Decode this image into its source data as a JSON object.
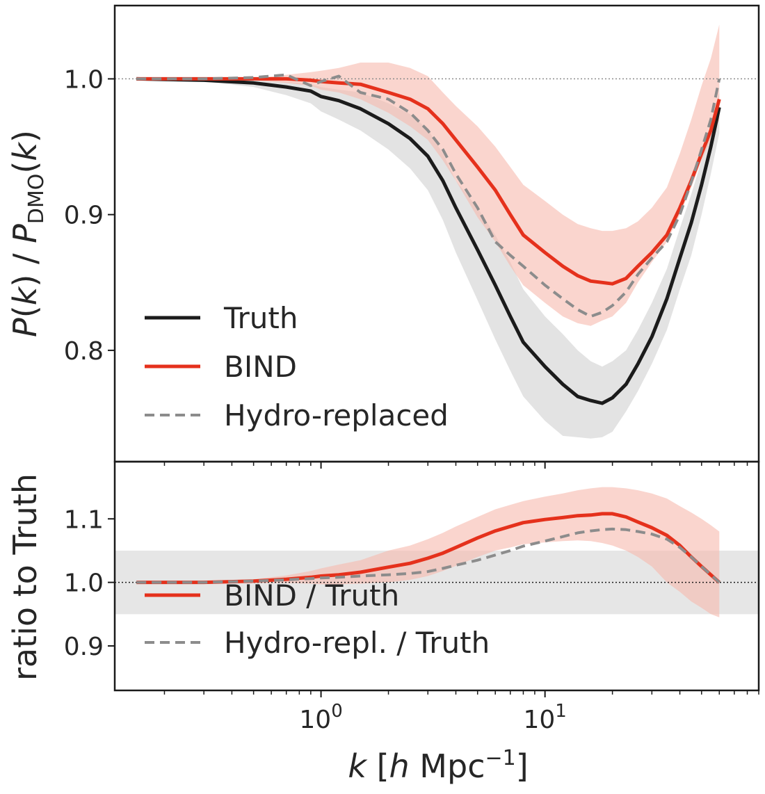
{
  "chart_data": [
    {
      "type": "line",
      "ylabel": "P(k) / P_DMO(k)",
      "xscale": "log",
      "xlim": [
        0.12,
        90
      ],
      "ylim": [
        0.718,
        1.054
      ],
      "yticks": [
        0.8,
        0.9,
        1.0
      ],
      "ytick_labels": [
        "0.8",
        "0.9",
        "1.0"
      ],
      "reference_line": 1.0,
      "legend": {
        "location": "lower-left",
        "entries": [
          "Truth",
          "BIND",
          "Hydro-replaced"
        ]
      },
      "colors": {
        "Truth": "#1b1b1b",
        "BIND": "#e5311c",
        "Hydro-replaced": "#8c8c8c",
        "truth_band": "#d9d9d9",
        "bind_band": "#f7b9ae"
      },
      "x": [
        0.15,
        0.3,
        0.5,
        0.7,
        0.9,
        1.0,
        1.2,
        1.5,
        2.0,
        2.5,
        3.0,
        3.5,
        4.0,
        5.0,
        6.0,
        7.0,
        8.0,
        10,
        12,
        14,
        16,
        18,
        20,
        23,
        26,
        30,
        35,
        40,
        45,
        50,
        55,
        60
      ],
      "series": [
        {
          "name": "Truth",
          "style": "solid",
          "band": "grey",
          "values": [
            1.0,
            0.999,
            0.997,
            0.994,
            0.991,
            0.987,
            0.984,
            0.978,
            0.967,
            0.956,
            0.943,
            0.925,
            0.905,
            0.874,
            0.848,
            0.825,
            0.806,
            0.788,
            0.775,
            0.766,
            0.763,
            0.761,
            0.765,
            0.775,
            0.79,
            0.81,
            0.838,
            0.868,
            0.894,
            0.922,
            0.95,
            0.979
          ],
          "lower": [
            1.0,
            0.998,
            0.994,
            0.988,
            0.982,
            0.976,
            0.97,
            0.962,
            0.948,
            0.934,
            0.918,
            0.896,
            0.872,
            0.837,
            0.808,
            0.785,
            0.766,
            0.748,
            0.737,
            0.736,
            0.735,
            0.736,
            0.74,
            0.755,
            0.77,
            0.79,
            0.815,
            0.845,
            0.87,
            0.9,
            0.93,
            0.96
          ],
          "upper": [
            1.0,
            1.0,
            0.999,
            0.998,
            0.996,
            0.994,
            0.992,
            0.99,
            0.982,
            0.974,
            0.963,
            0.945,
            0.925,
            0.905,
            0.885,
            0.865,
            0.845,
            0.825,
            0.812,
            0.8,
            0.792,
            0.788,
            0.792,
            0.8,
            0.815,
            0.835,
            0.86,
            0.89,
            0.915,
            0.94,
            0.965,
            0.99
          ]
        },
        {
          "name": "BIND",
          "style": "solid",
          "band": "red",
          "values": [
            1.0,
            1.0,
            1.0,
            1.0,
            0.999,
            0.998,
            0.997,
            0.996,
            0.99,
            0.985,
            0.978,
            0.967,
            0.955,
            0.935,
            0.918,
            0.9,
            0.885,
            0.872,
            0.862,
            0.855,
            0.851,
            0.85,
            0.849,
            0.853,
            0.862,
            0.872,
            0.885,
            0.905,
            0.925,
            0.945,
            0.962,
            0.985
          ],
          "lower": [
            1.0,
            1.0,
            0.999,
            0.997,
            0.995,
            0.992,
            0.99,
            0.985,
            0.975,
            0.965,
            0.955,
            0.94,
            0.925,
            0.898,
            0.88,
            0.862,
            0.848,
            0.835,
            0.825,
            0.82,
            0.818,
            0.822,
            0.825,
            0.835,
            0.85,
            0.865,
            0.88,
            0.9,
            0.92,
            0.94,
            0.955,
            0.97
          ],
          "upper": [
            1.0,
            1.0,
            1.0,
            1.003,
            1.005,
            1.006,
            1.008,
            1.012,
            1.012,
            1.008,
            1.002,
            0.99,
            0.98,
            0.965,
            0.95,
            0.935,
            0.922,
            0.91,
            0.9,
            0.893,
            0.89,
            0.888,
            0.888,
            0.89,
            0.895,
            0.905,
            0.92,
            0.945,
            0.97,
            0.995,
            1.015,
            1.04
          ]
        },
        {
          "name": "Hydro-replaced",
          "style": "dashed",
          "values": [
            1.0,
            1.0,
            1.001,
            1.003,
            0.995,
            0.998,
            1.002,
            0.99,
            0.985,
            0.975,
            0.962,
            0.948,
            0.93,
            0.905,
            0.88,
            0.87,
            0.862,
            0.848,
            0.838,
            0.83,
            0.825,
            0.828,
            0.833,
            0.843,
            0.856,
            0.868,
            0.88,
            0.9,
            0.924,
            0.948,
            0.97,
            1.0
          ]
        }
      ]
    },
    {
      "type": "line",
      "xlabel": "k [h Mpc^-1]",
      "ylabel": "ratio to Truth",
      "xscale": "log",
      "xlim": [
        0.12,
        90
      ],
      "ylim": [
        0.83,
        1.19
      ],
      "yticks": [
        0.9,
        1.0,
        1.1
      ],
      "ytick_labels": [
        "0.9",
        "1.0",
        "1.1"
      ],
      "xticks": [
        1,
        10
      ],
      "xtick_labels": [
        "10^0",
        "10^1"
      ],
      "reference_line": 1.0,
      "shaded_region": [
        0.95,
        1.05
      ],
      "legend": {
        "location": "lower-left",
        "entries": [
          "BIND / Truth",
          "Hydro-repl. / Truth"
        ]
      },
      "colors": {
        "BIND / Truth": "#e5311c",
        "Hydro-repl. / Truth": "#8c8c8c",
        "shaded_region": "#e6e6e6",
        "bind_band": "#f7b9ae"
      },
      "x": [
        0.15,
        0.3,
        0.5,
        0.7,
        0.9,
        1.0,
        1.2,
        1.5,
        2.0,
        2.5,
        3.0,
        3.5,
        4.0,
        5.0,
        6.0,
        7.0,
        8.0,
        10,
        12,
        14,
        16,
        18,
        20,
        23,
        26,
        30,
        35,
        40,
        45,
        50,
        55,
        60
      ],
      "series": [
        {
          "name": "BIND / Truth",
          "style": "solid",
          "band": "red",
          "values": [
            1.0,
            1.0,
            1.002,
            1.005,
            1.008,
            1.01,
            1.012,
            1.016,
            1.024,
            1.03,
            1.038,
            1.046,
            1.055,
            1.07,
            1.081,
            1.088,
            1.094,
            1.099,
            1.102,
            1.105,
            1.106,
            1.108,
            1.108,
            1.103,
            1.095,
            1.086,
            1.074,
            1.058,
            1.04,
            1.025,
            1.012,
            1.0
          ],
          "lower": [
            1.0,
            0.999,
            0.999,
            0.999,
            0.998,
            0.997,
            0.997,
            0.998,
            1.0,
            1.004,
            1.01,
            1.018,
            1.026,
            1.04,
            1.05,
            1.055,
            1.06,
            1.063,
            1.065,
            1.066,
            1.065,
            1.062,
            1.058,
            1.05,
            1.04,
            1.025,
            1.0,
            0.985,
            0.97,
            0.96,
            0.95,
            0.945
          ],
          "upper": [
            1.0,
            1.001,
            1.005,
            1.011,
            1.018,
            1.022,
            1.028,
            1.035,
            1.05,
            1.058,
            1.068,
            1.078,
            1.088,
            1.103,
            1.115,
            1.122,
            1.128,
            1.135,
            1.14,
            1.145,
            1.148,
            1.15,
            1.15,
            1.148,
            1.145,
            1.14,
            1.132,
            1.12,
            1.11,
            1.1,
            1.09,
            1.08
          ]
        },
        {
          "name": "Hydro-repl. / Truth",
          "style": "dashed",
          "values": [
            1.0,
            1.0,
            1.002,
            1.004,
            1.006,
            1.007,
            1.008,
            1.01,
            1.012,
            1.014,
            1.017,
            1.022,
            1.027,
            1.035,
            1.043,
            1.05,
            1.057,
            1.065,
            1.072,
            1.078,
            1.081,
            1.083,
            1.084,
            1.083,
            1.08,
            1.076,
            1.068,
            1.055,
            1.04,
            1.025,
            1.012,
            1.0
          ]
        }
      ]
    }
  ]
}
